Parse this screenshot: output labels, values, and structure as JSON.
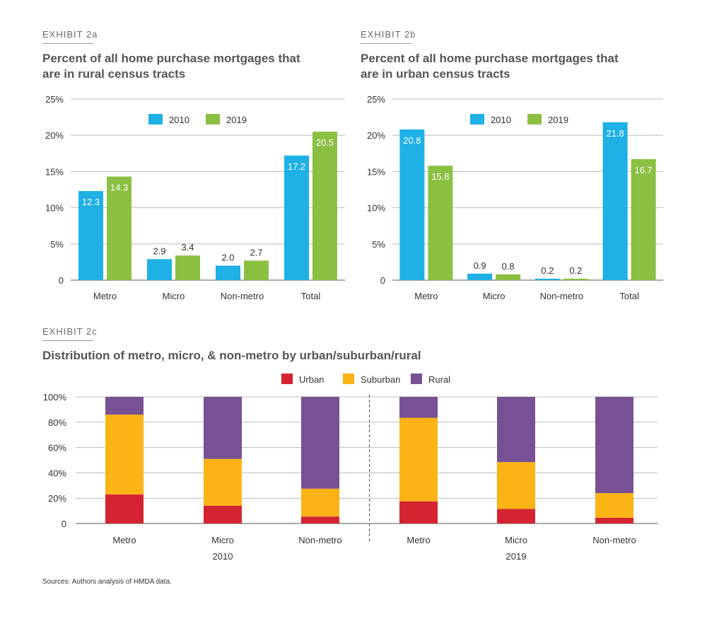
{
  "exhibit_a": {
    "label": "EXHIBIT 2a",
    "title": "Percent of all home purchase mortgages that are in rural census tracts"
  },
  "exhibit_b": {
    "label": "EXHIBIT 2b",
    "title": "Percent of all home purchase mortgages that are in urban census tracts"
  },
  "exhibit_c": {
    "label": "EXHIBIT 2c",
    "title": "Distribution of metro, micro, & non-metro by urban/suburban/rural"
  },
  "colors": {
    "blue": "#1fb0e6",
    "green": "#8bc043",
    "urban": "#d42431",
    "suburban": "#fbb315",
    "rural": "#775193",
    "grid": "#bbbbbb",
    "axis": "#555555"
  },
  "source": "Sources: Authors analysis of HMDA data.",
  "chart_data": [
    {
      "type": "bar",
      "title": "Percent of all home purchase mortgages that are in rural census tracts",
      "categories": [
        "Metro",
        "Micro",
        "Non-metro",
        "Total"
      ],
      "series": [
        {
          "name": "2010",
          "values": [
            12.3,
            2.9,
            2.0,
            17.2
          ],
          "labels": [
            "12.3",
            "2.9",
            "2.0",
            "17.2"
          ]
        },
        {
          "name": "2019",
          "values": [
            14.3,
            3.4,
            2.7,
            20.5
          ],
          "labels": [
            "14.3",
            "3.4",
            "2.7",
            "20.5"
          ]
        }
      ],
      "ylim": [
        0,
        25
      ],
      "yticks": [
        0,
        5,
        10,
        15,
        20,
        25
      ],
      "ytick_labels": [
        "0",
        "5%",
        "10%",
        "15%",
        "20%",
        "25%"
      ],
      "legend": "top-center",
      "grid": true
    },
    {
      "type": "bar",
      "title": "Percent of all home purchase mortgages that are in urban census tracts",
      "categories": [
        "Metro",
        "Micro",
        "Non-metro",
        "Total"
      ],
      "series": [
        {
          "name": "2010",
          "values": [
            20.8,
            0.9,
            0.2,
            21.8
          ],
          "labels": [
            "20.8",
            "0.9",
            "0.2",
            "21.8"
          ]
        },
        {
          "name": "2019",
          "values": [
            15.8,
            0.8,
            0.2,
            16.7
          ],
          "labels": [
            "15.8",
            "0.8",
            "0.2",
            "16.7"
          ]
        }
      ],
      "ylim": [
        0,
        25
      ],
      "yticks": [
        0,
        5,
        10,
        15,
        20,
        25
      ],
      "ytick_labels": [
        "0",
        "5%",
        "10%",
        "15%",
        "20%",
        "25%"
      ],
      "legend": "top-center",
      "grid": true
    },
    {
      "type": "bar",
      "stacked": true,
      "title": "Distribution of metro, micro, & non-metro by urban/suburban/rural",
      "categories": [
        "Metro",
        "Micro",
        "Non-metro",
        "Metro",
        "Micro",
        "Non-metro"
      ],
      "groups": [
        {
          "label": "2010",
          "categories": [
            "Metro",
            "Micro",
            "Non-metro"
          ]
        },
        {
          "label": "2019",
          "categories": [
            "Metro",
            "Micro",
            "Non-metro"
          ]
        }
      ],
      "series": [
        {
          "name": "Urban",
          "values": [
            23,
            14,
            5.5,
            17.5,
            11.5,
            4.5
          ]
        },
        {
          "name": "Suburban",
          "values": [
            63,
            37,
            22,
            66,
            37,
            19.5
          ]
        },
        {
          "name": "Rural",
          "values": [
            14,
            49,
            72.5,
            16.5,
            51.5,
            76
          ]
        }
      ],
      "ylim": [
        0,
        100
      ],
      "yticks": [
        0,
        20,
        40,
        60,
        80,
        100
      ],
      "ytick_labels": [
        "0",
        "20%",
        "40%",
        "60%",
        "80%",
        "100%"
      ],
      "legend": "top-center",
      "grid": true
    }
  ]
}
